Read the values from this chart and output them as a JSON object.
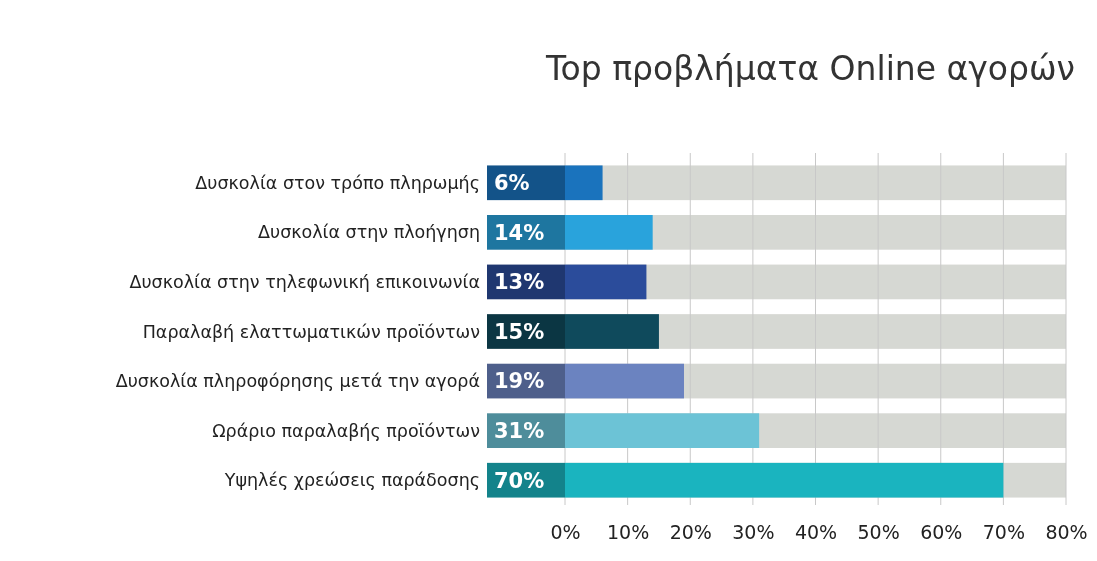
{
  "chart_data": {
    "type": "bar",
    "orientation": "horizontal",
    "title": "Top προβλήματα Online αγορών",
    "categories": [
      "Δυσκολία στον τρόπο πληρωμής",
      "Δυσκολία στην πλοήγηση",
      "Δυσκολία στην τηλεφωνική επικοινωνία",
      "Παραλαβή ελαττωματικών προϊόντων",
      "Δυσκολία πληροφόρησης μετά την αγορά",
      "Ωράριο παραλαβής προϊόντων",
      "Υψηλές χρεώσεις παράδοσης"
    ],
    "values": [
      6,
      14,
      13,
      15,
      19,
      31,
      70
    ],
    "value_labels": [
      "6%",
      "14%",
      "13%",
      "15%",
      "19%",
      "31%",
      "70%"
    ],
    "colors": [
      "#1a73bd",
      "#29a3dc",
      "#2b4c9b",
      "#0f4a5c",
      "#6b83c0",
      "#6cc3d6",
      "#1ab4bf"
    ],
    "xlim": [
      0,
      80
    ],
    "xticks": [
      {
        "value": 0,
        "label": "0%"
      },
      {
        "value": 10,
        "label": "10%"
      },
      {
        "value": 20,
        "label": "20%"
      },
      {
        "value": 30,
        "label": "30%"
      },
      {
        "value": 40,
        "label": "40%"
      },
      {
        "value": 50,
        "label": "50%"
      },
      {
        "value": 60,
        "label": "60%"
      },
      {
        "value": 70,
        "label": "70%"
      },
      {
        "value": 80,
        "label": "80%"
      }
    ],
    "grid": "x"
  }
}
